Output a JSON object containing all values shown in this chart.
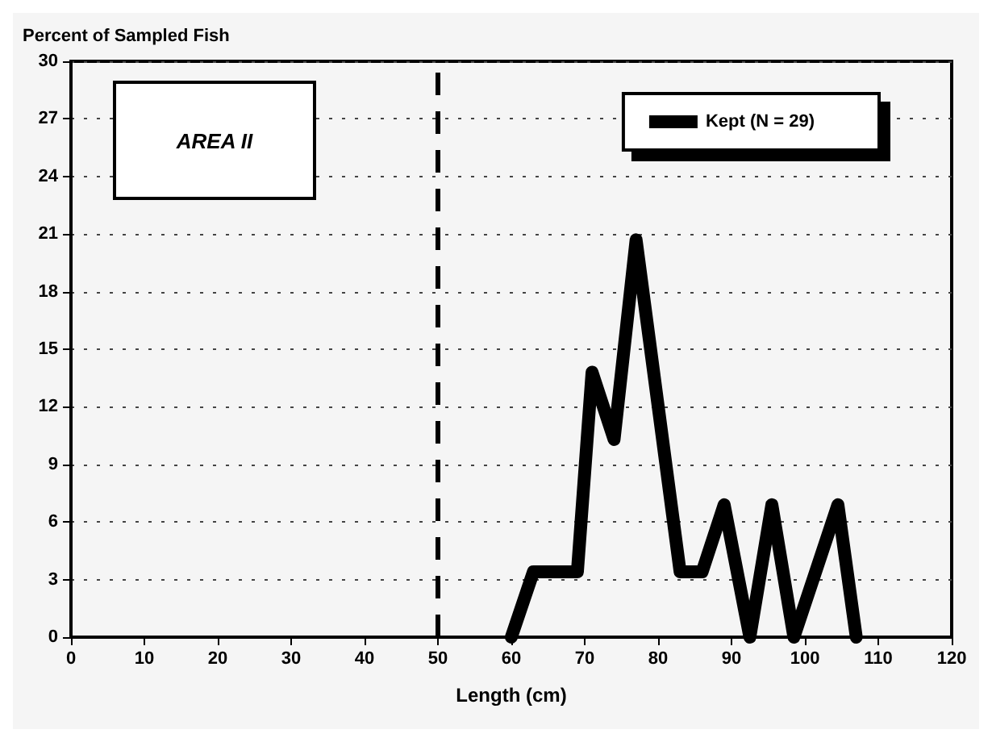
{
  "chart_data": {
    "type": "line",
    "ylabel": "Percent of Sampled Fish",
    "xlabel": "Length (cm)",
    "x": [
      60,
      63,
      69,
      71,
      74,
      77,
      83,
      86,
      89,
      92.5,
      95.5,
      98.5,
      104.5,
      107
    ],
    "series": [
      {
        "name": "Kept (N = 29)",
        "color": "#000000",
        "values": [
          0,
          3.4,
          3.4,
          13.8,
          10.3,
          20.7,
          3.4,
          3.4,
          6.9,
          0,
          6.9,
          0,
          6.9,
          0
        ]
      }
    ],
    "xlim": [
      0,
      120
    ],
    "xticks": [
      0,
      10,
      20,
      30,
      40,
      50,
      60,
      70,
      80,
      90,
      100,
      110,
      120
    ],
    "ylim": [
      0,
      30
    ],
    "yticks": [
      0,
      3,
      6,
      9,
      12,
      15,
      18,
      21,
      24,
      27,
      30
    ],
    "grid": "y",
    "legend": "top right",
    "line_style": "solid",
    "ref_lines": [
      {
        "axis": "x",
        "value": 50,
        "line_style": "dashed",
        "color": "#000000"
      }
    ],
    "annotations": [
      "AREA II"
    ]
  }
}
